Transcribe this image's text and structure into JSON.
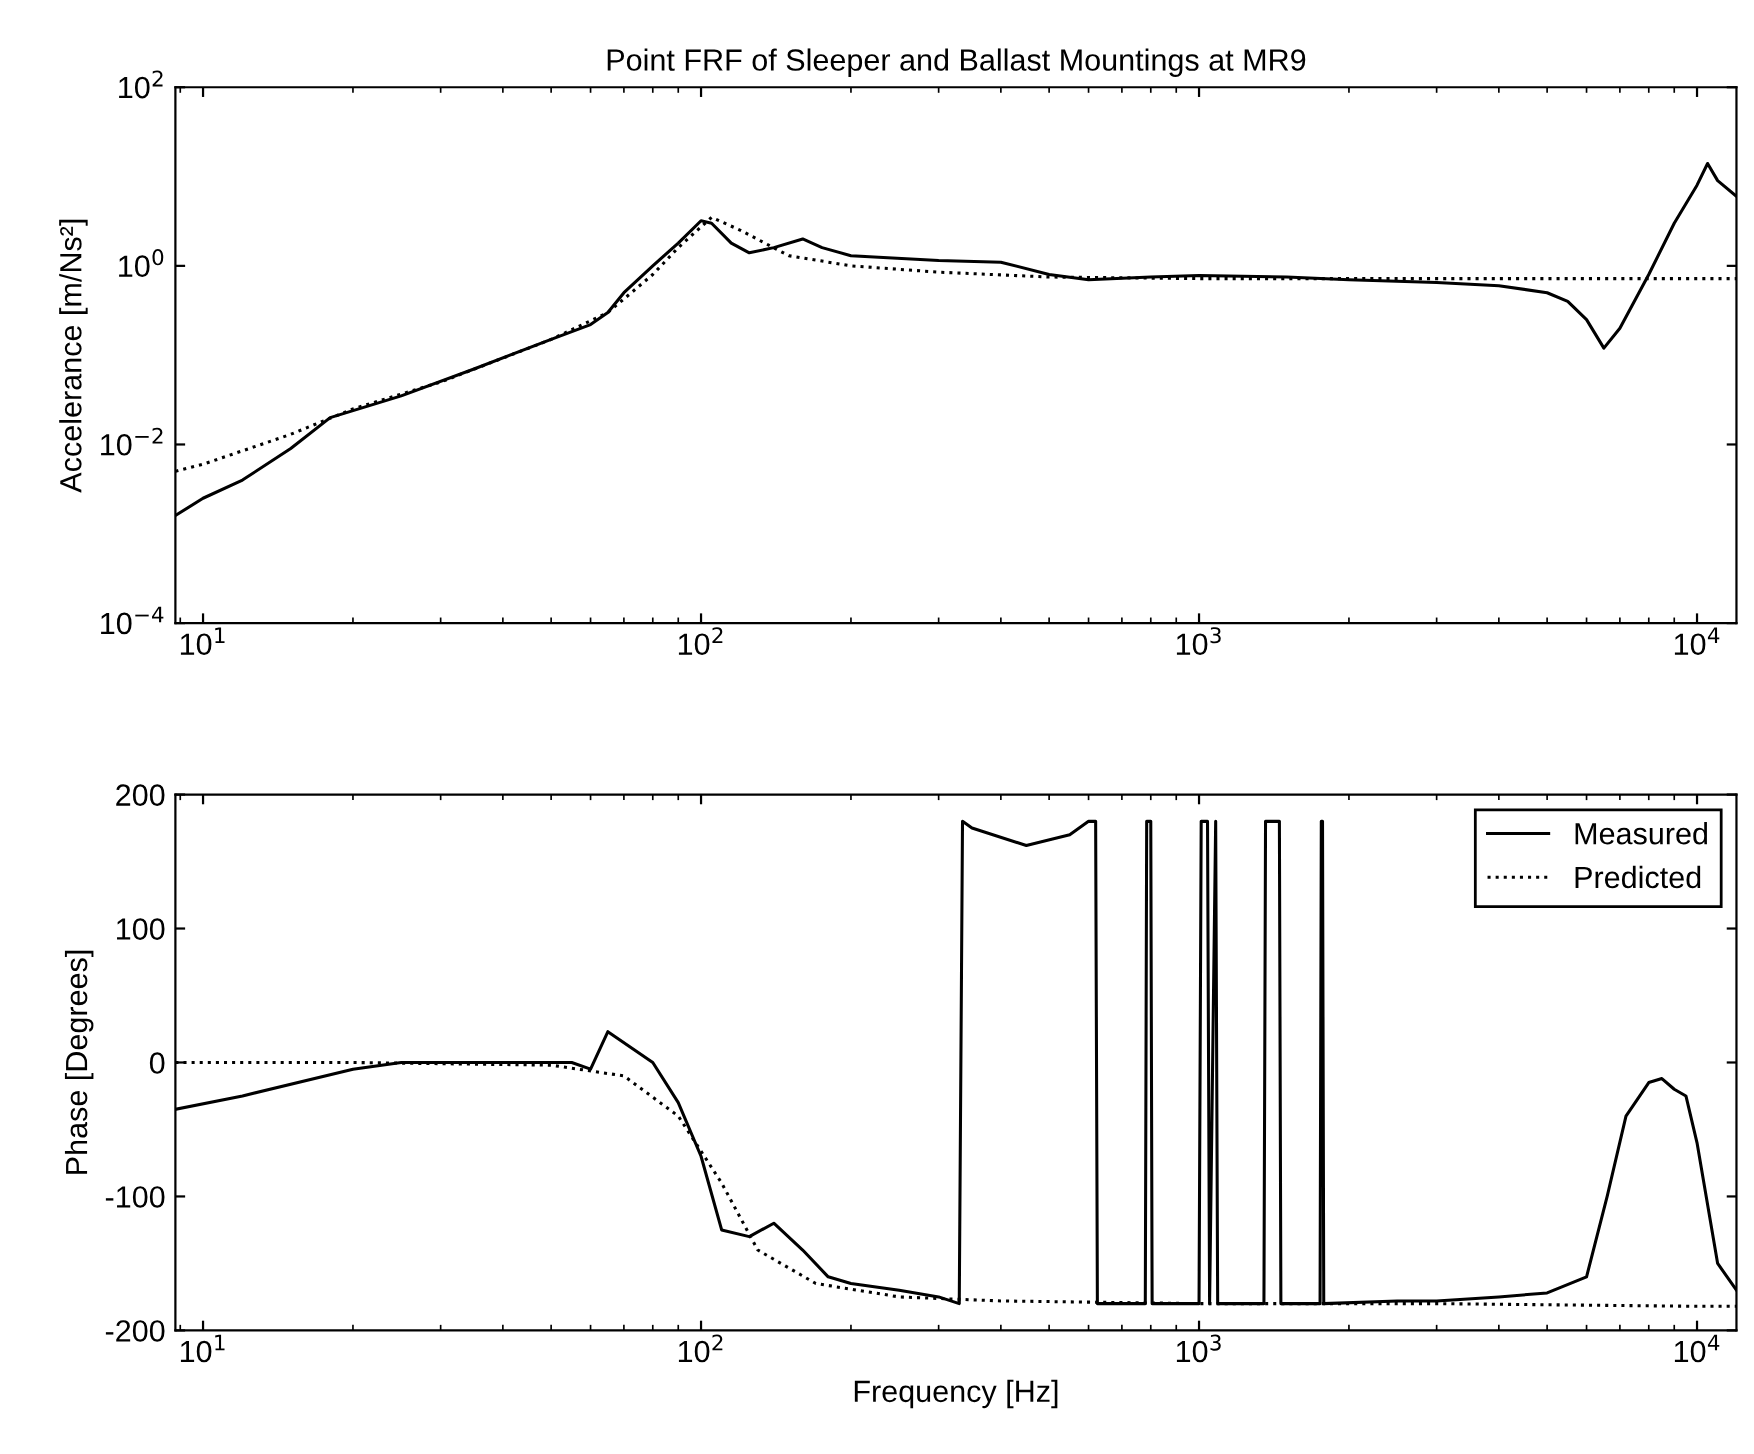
{
  "chart_data": [
    {
      "type": "line",
      "title": "Point FRF of Sleeper and Ballast Mountings at MR9",
      "ylabel": "Accelerance [m/Ns²]",
      "log": "xy",
      "xlim": [
        8.8,
        12000
      ],
      "ylim": [
        0.0001,
        100
      ],
      "xticks": [
        {
          "value": 10,
          "label": "10$^{1}$"
        },
        {
          "value": 100,
          "label": "10$^{2}$"
        },
        {
          "value": 1000,
          "label": "10$^{3}$"
        },
        {
          "value": 10000,
          "label": "10$^{4}$"
        }
      ],
      "yticks": [
        {
          "value": 0.0001,
          "label": "10$^{−4}$"
        },
        {
          "value": 0.01,
          "label": "10$^{−2}$"
        },
        {
          "value": 1,
          "label": "10$^{0}$"
        },
        {
          "value": 100,
          "label": "10$^{2}$"
        }
      ],
      "grid": false,
      "legend": false,
      "series": [
        {
          "color": "#000000",
          "line_style": "solid",
          "x": [
            8.8,
            10,
            12,
            15,
            18,
            25,
            35,
            50,
            60,
            65,
            70,
            80,
            90,
            100,
            105,
            115,
            125,
            140,
            160,
            175,
            200,
            300,
            400,
            500,
            600,
            800,
            1000,
            1500,
            2000,
            3000,
            4000,
            5000,
            5500,
            6000,
            6500,
            7000,
            8000,
            9000,
            10000,
            10500,
            11000,
            12000
          ],
          "values": [
            0.0016,
            0.0025,
            0.004,
            0.009,
            0.02,
            0.035,
            0.07,
            0.15,
            0.22,
            0.3,
            0.5,
            1.0,
            1.8,
            3.2,
            3.0,
            1.8,
            1.4,
            1.6,
            2.0,
            1.6,
            1.3,
            1.15,
            1.1,
            0.8,
            0.7,
            0.75,
            0.78,
            0.75,
            0.7,
            0.65,
            0.6,
            0.5,
            0.4,
            0.25,
            0.12,
            0.2,
            0.8,
            3,
            8,
            14,
            9,
            6
          ]
        },
        {
          "color": "#000000",
          "line_style": "dotted",
          "x": [
            8.8,
            10,
            15,
            20,
            30,
            50,
            65,
            80,
            90,
            105,
            120,
            150,
            200,
            300,
            500,
            1000,
            3000,
            10000,
            12000
          ],
          "values": [
            0.005,
            0.006,
            0.013,
            0.025,
            0.05,
            0.15,
            0.3,
            0.8,
            1.6,
            3.5,
            2.5,
            1.3,
            1.0,
            0.85,
            0.75,
            0.72,
            0.72,
            0.72,
            0.72
          ]
        }
      ]
    },
    {
      "type": "line",
      "xlabel": "Frequency [Hz]",
      "ylabel": "Phase [Degrees]",
      "log": "x",
      "xlim": [
        8.8,
        12000
      ],
      "ylim": [
        -200,
        200
      ],
      "xticks": [
        {
          "value": 10,
          "label": "10$^{1}$"
        },
        {
          "value": 100,
          "label": "10$^{2}$"
        },
        {
          "value": 1000,
          "label": "10$^{3}$"
        },
        {
          "value": 10000,
          "label": "10$^{4}$"
        }
      ],
      "yticks": [
        -200,
        -100,
        0,
        100,
        200
      ],
      "grid": false,
      "legend": "top right",
      "series": [
        {
          "name": "Measured",
          "color": "#000000",
          "line_style": "solid",
          "x": [
            8.8,
            12,
            20,
            25,
            55,
            60,
            65,
            80,
            90,
            100,
            110,
            125,
            140,
            160,
            180,
            200,
            250,
            300,
            330,
            335,
            350,
            450,
            550,
            600,
            620,
            625,
            780,
            785,
            800,
            805,
            1000,
            1010,
            1040,
            1050,
            1080,
            1090,
            1350,
            1360,
            1450,
            1460,
            1750,
            1760,
            1770,
            1780,
            2500,
            3000,
            4000,
            5000,
            6000,
            6600,
            7200,
            8000,
            8500,
            9000,
            9500,
            10000,
            11000,
            12000
          ],
          "values": [
            -35,
            -25,
            -5,
            0,
            0,
            -5,
            23,
            0,
            -30,
            -70,
            -125,
            -130,
            -120,
            -140,
            -160,
            -165,
            -170,
            -175,
            -180,
            180,
            175,
            162,
            170,
            180,
            180,
            -180,
            -180,
            180,
            180,
            -180,
            -180,
            180,
            180,
            -180,
            180,
            -180,
            -180,
            180,
            180,
            -180,
            -180,
            180,
            180,
            -180,
            -178,
            -178,
            -175,
            -172,
            -160,
            -100,
            -40,
            -15,
            -12,
            -20,
            -25,
            -60,
            -150,
            -170
          ]
        },
        {
          "name": "Predicted",
          "color": "#000000",
          "line_style": "dotted",
          "x": [
            8.8,
            20,
            50,
            70,
            90,
            110,
            130,
            170,
            250,
            400,
            1000,
            3000,
            10000,
            12000
          ],
          "values": [
            0,
            0,
            -2,
            -10,
            -40,
            -90,
            -140,
            -165,
            -175,
            -178,
            -180,
            -180,
            -182,
            -182
          ]
        }
      ]
    }
  ]
}
